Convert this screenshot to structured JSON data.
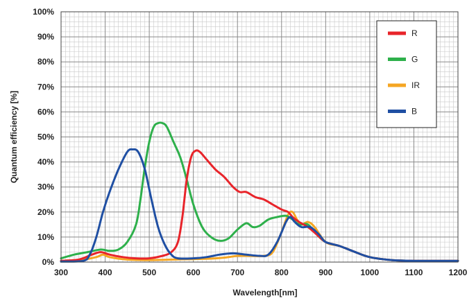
{
  "chart_data": {
    "type": "line",
    "title": "",
    "xlabel": "Wavelength[nm]",
    "ylabel": "Quantum  efficiency  [%]",
    "xlim": [
      300,
      1200
    ],
    "ylim": [
      0,
      100
    ],
    "x_ticks": [
      "300",
      "400",
      "500",
      "600",
      "700",
      "800",
      "900",
      "1000",
      "1100",
      "1200"
    ],
    "y_ticks": [
      "0%",
      "10%",
      "20%",
      "30%",
      "40%",
      "50%",
      "60%",
      "70%",
      "80%",
      "90%",
      "100%"
    ],
    "grid": true,
    "legend_position": "top-right",
    "series": [
      {
        "name": "R",
        "color": "#e8242a",
        "points": [
          [
            300,
            0.5
          ],
          [
            340,
            1
          ],
          [
            370,
            3
          ],
          [
            390,
            4
          ],
          [
            410,
            3
          ],
          [
            440,
            2
          ],
          [
            470,
            1.5
          ],
          [
            500,
            1.5
          ],
          [
            530,
            2.5
          ],
          [
            550,
            4
          ],
          [
            565,
            8
          ],
          [
            575,
            18
          ],
          [
            585,
            33
          ],
          [
            595,
            42
          ],
          [
            605,
            44.5
          ],
          [
            615,
            44
          ],
          [
            630,
            41
          ],
          [
            650,
            37
          ],
          [
            670,
            34
          ],
          [
            690,
            30
          ],
          [
            705,
            28
          ],
          [
            720,
            28
          ],
          [
            740,
            26
          ],
          [
            760,
            25
          ],
          [
            780,
            23
          ],
          [
            800,
            21
          ],
          [
            815,
            20
          ],
          [
            825,
            18
          ],
          [
            840,
            16
          ],
          [
            860,
            14
          ],
          [
            880,
            11
          ],
          [
            900,
            8
          ],
          [
            930,
            6.5
          ],
          [
            960,
            4.5
          ],
          [
            1000,
            2
          ],
          [
            1050,
            0.8
          ],
          [
            1100,
            0.5
          ],
          [
            1200,
            0.5
          ]
        ]
      },
      {
        "name": "G",
        "color": "#2eb04b",
        "points": [
          [
            300,
            1.5
          ],
          [
            330,
            3
          ],
          [
            360,
            4
          ],
          [
            390,
            5
          ],
          [
            410,
            4.5
          ],
          [
            430,
            5
          ],
          [
            450,
            8
          ],
          [
            470,
            15
          ],
          [
            480,
            25
          ],
          [
            490,
            38
          ],
          [
            500,
            48
          ],
          [
            510,
            54
          ],
          [
            520,
            55.5
          ],
          [
            530,
            55.5
          ],
          [
            540,
            54
          ],
          [
            555,
            48
          ],
          [
            570,
            42
          ],
          [
            585,
            33
          ],
          [
            600,
            23
          ],
          [
            620,
            14
          ],
          [
            640,
            10
          ],
          [
            660,
            8.5
          ],
          [
            680,
            9.5
          ],
          [
            700,
            13
          ],
          [
            720,
            15.5
          ],
          [
            735,
            14
          ],
          [
            750,
            14.5
          ],
          [
            770,
            17
          ],
          [
            790,
            18
          ],
          [
            810,
            18.5
          ],
          [
            825,
            17
          ],
          [
            840,
            15
          ],
          [
            860,
            15
          ],
          [
            880,
            11
          ],
          [
            900,
            8
          ],
          [
            930,
            6.5
          ],
          [
            960,
            4.5
          ],
          [
            1000,
            2
          ],
          [
            1050,
            0.8
          ],
          [
            1100,
            0.5
          ],
          [
            1200,
            0.5
          ]
        ]
      },
      {
        "name": "IR",
        "color": "#f5a623",
        "points": [
          [
            300,
            0.5
          ],
          [
            350,
            1
          ],
          [
            380,
            2
          ],
          [
            395,
            3
          ],
          [
            410,
            2
          ],
          [
            450,
            1
          ],
          [
            500,
            0.8
          ],
          [
            550,
            1
          ],
          [
            600,
            1.2
          ],
          [
            650,
            1.5
          ],
          [
            680,
            2
          ],
          [
            700,
            2.5
          ],
          [
            730,
            2.5
          ],
          [
            760,
            2.5
          ],
          [
            780,
            4
          ],
          [
            800,
            12
          ],
          [
            815,
            19
          ],
          [
            825,
            20
          ],
          [
            835,
            17
          ],
          [
            845,
            15
          ],
          [
            860,
            16
          ],
          [
            875,
            14
          ],
          [
            900,
            8
          ],
          [
            930,
            6.5
          ],
          [
            960,
            4.5
          ],
          [
            1000,
            2
          ],
          [
            1050,
            0.8
          ],
          [
            1100,
            0.5
          ],
          [
            1200,
            0.5
          ]
        ]
      },
      {
        "name": "B",
        "color": "#1f4fa3",
        "points": [
          [
            300,
            0.2
          ],
          [
            350,
            0.5
          ],
          [
            365,
            3
          ],
          [
            380,
            10
          ],
          [
            395,
            20
          ],
          [
            410,
            28
          ],
          [
            430,
            37
          ],
          [
            450,
            44
          ],
          [
            462,
            45
          ],
          [
            475,
            44
          ],
          [
            490,
            37
          ],
          [
            505,
            25
          ],
          [
            520,
            14
          ],
          [
            535,
            7
          ],
          [
            550,
            3
          ],
          [
            565,
            1.5
          ],
          [
            600,
            1.5
          ],
          [
            630,
            2
          ],
          [
            660,
            3
          ],
          [
            690,
            3.5
          ],
          [
            720,
            3
          ],
          [
            750,
            2.5
          ],
          [
            770,
            3
          ],
          [
            790,
            8
          ],
          [
            810,
            16
          ],
          [
            820,
            18
          ],
          [
            830,
            16
          ],
          [
            845,
            14
          ],
          [
            865,
            14
          ],
          [
            885,
            11
          ],
          [
            900,
            8
          ],
          [
            930,
            6.5
          ],
          [
            960,
            4.5
          ],
          [
            1000,
            2
          ],
          [
            1050,
            0.8
          ],
          [
            1100,
            0.5
          ],
          [
            1200,
            0.5
          ]
        ]
      }
    ],
    "legend_order": [
      "R",
      "G",
      "IR",
      "B"
    ]
  }
}
